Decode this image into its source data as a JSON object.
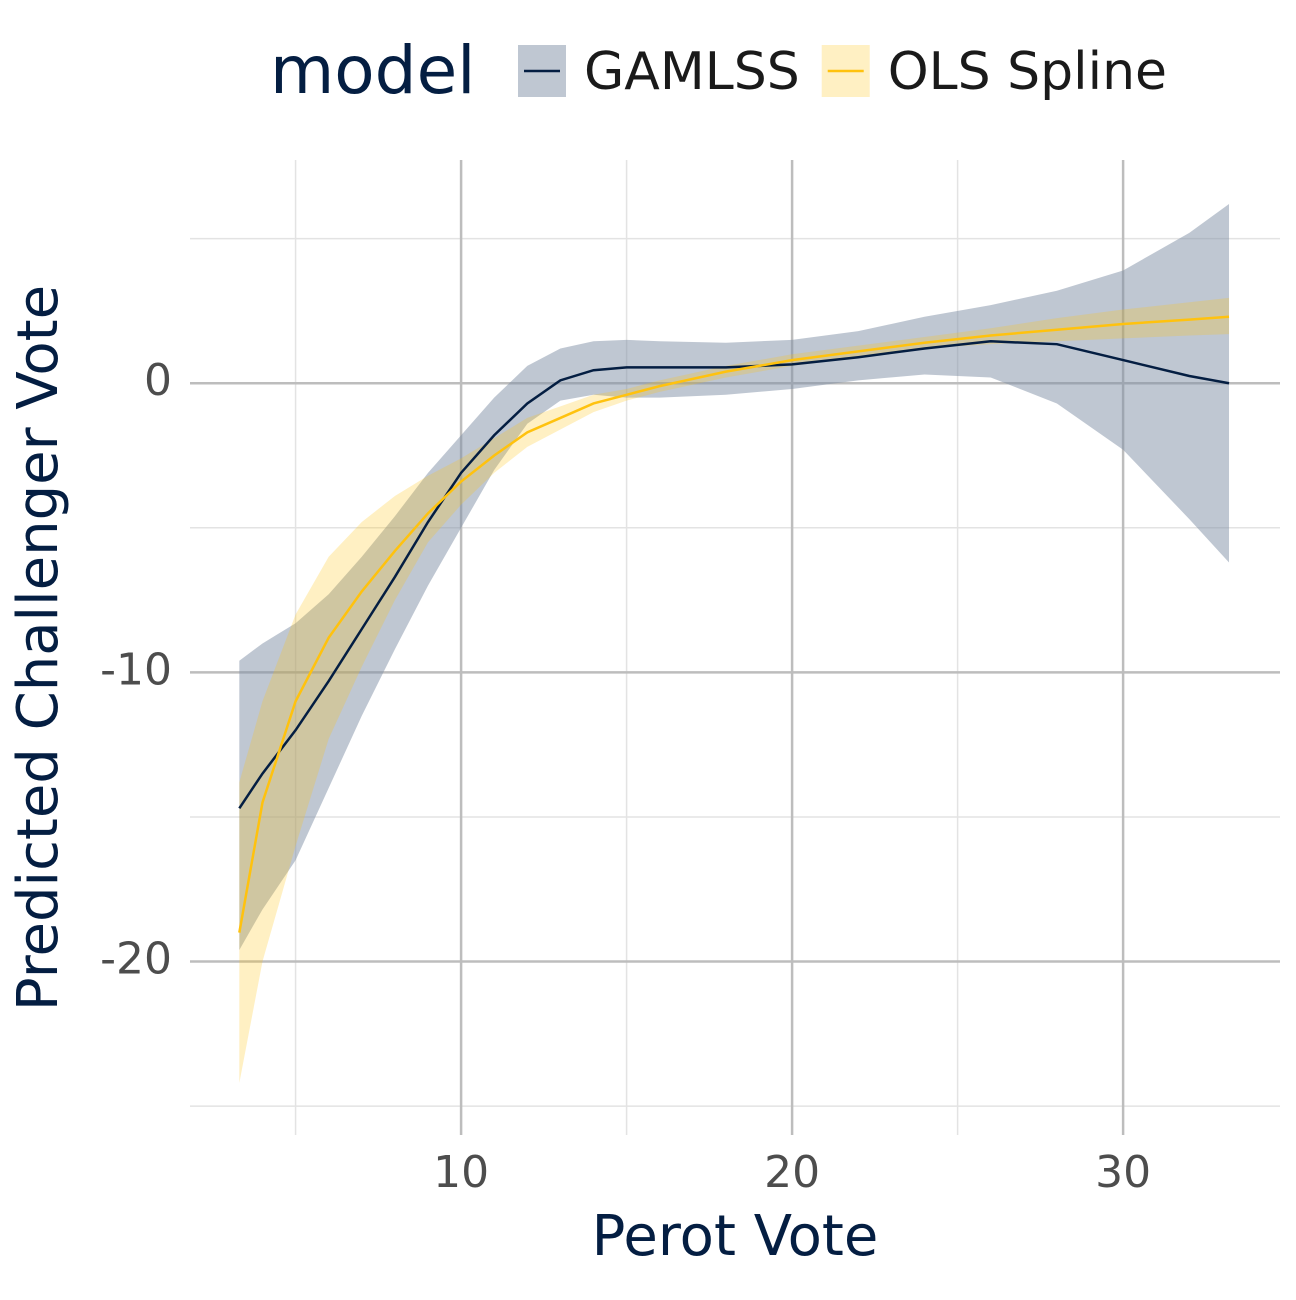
{
  "chart_data": {
    "type": "line",
    "x_label": "Perot Vote",
    "y_label": "Predicted Challenger Vote",
    "legend_title": "model",
    "x": [
      3.3,
      4,
      5,
      6,
      7,
      8,
      9,
      10,
      11,
      12,
      13,
      14,
      15,
      16,
      18,
      20,
      22,
      24,
      26,
      28,
      30,
      32,
      33.2
    ],
    "series": [
      {
        "name": "GAMLSS",
        "color": "#041e42",
        "band_color": "#8090a5",
        "values": [
          -14.7,
          -13.5,
          -12.0,
          -10.3,
          -8.5,
          -6.7,
          -4.8,
          -3.1,
          -1.8,
          -0.7,
          0.1,
          0.45,
          0.55,
          0.55,
          0.55,
          0.65,
          0.9,
          1.2,
          1.45,
          1.35,
          0.8,
          0.25,
          0
        ],
        "lower": [
          -19.6,
          -18.2,
          -16.5,
          -14,
          -11.5,
          -9.2,
          -7.0,
          -5.0,
          -3.0,
          -1.4,
          -0.6,
          -0.4,
          -0.5,
          -0.5,
          -0.4,
          -0.2,
          0.1,
          0.3,
          0.2,
          -0.7,
          -2.3,
          -4.7,
          -6.2
        ],
        "upper": [
          -9.6,
          -9.0,
          -8.3,
          -7.3,
          -6.0,
          -4.6,
          -3.1,
          -1.8,
          -0.5,
          0.6,
          1.2,
          1.45,
          1.5,
          1.45,
          1.4,
          1.5,
          1.8,
          2.3,
          2.7,
          3.2,
          3.9,
          5.2,
          6.2
        ]
      },
      {
        "name": "OLS Spline",
        "color": "#ffc20e",
        "band_color": "#ffc20e",
        "values": [
          -19.0,
          -14.5,
          -11.0,
          -8.8,
          -7.2,
          -5.8,
          -4.5,
          -3.4,
          -2.5,
          -1.7,
          -1.2,
          -0.7,
          -0.4,
          -0.1,
          0.4,
          0.8,
          1.1,
          1.4,
          1.65,
          1.85,
          2.05,
          2.2,
          2.3
        ],
        "lower": [
          -24.2,
          -20,
          -16,
          -12.3,
          -9.8,
          -7.5,
          -5.5,
          -4.2,
          -3.1,
          -2.2,
          -1.6,
          -1.0,
          -0.6,
          -0.3,
          0.2,
          0.6,
          0.9,
          1.2,
          1.35,
          1.45,
          1.55,
          1.65,
          1.7
        ],
        "upper": [
          -13.8,
          -11,
          -8.0,
          -6.0,
          -4.8,
          -3.9,
          -3.2,
          -2.6,
          -1.9,
          -1.2,
          -0.8,
          -0.4,
          -0.2,
          0.1,
          0.6,
          1.0,
          1.3,
          1.6,
          1.9,
          2.25,
          2.55,
          2.8,
          2.95
        ]
      }
    ],
    "xlim": [
      1.81,
      34.74
    ],
    "ylim": [
      -26.0,
      7.72
    ],
    "xticks": [
      10,
      20,
      30
    ],
    "yticks": [
      -20,
      -10,
      0
    ],
    "xminor": [
      5,
      15,
      25
    ],
    "yminor": [
      -25,
      -15,
      -5,
      5
    ],
    "grid": true,
    "legend_position": "top"
  }
}
